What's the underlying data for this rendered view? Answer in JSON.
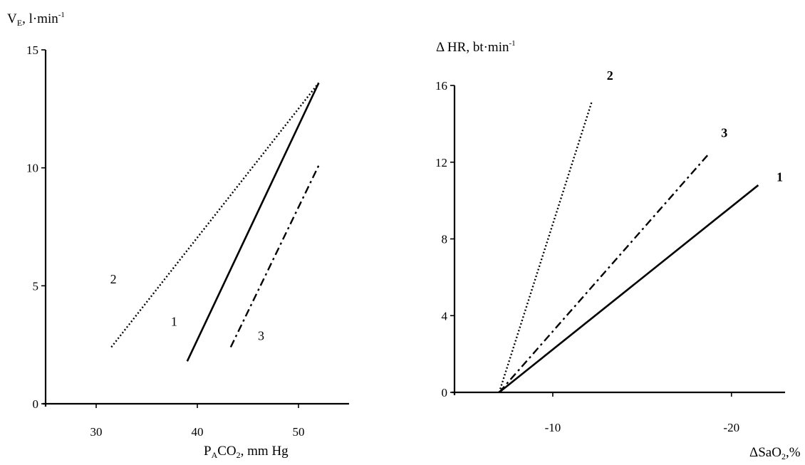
{
  "chart_data": [
    {
      "type": "line",
      "ylabel": {
        "main": "V",
        "sub": "E",
        "rest": ", l·min",
        "sup": "-1"
      },
      "xlabel": {
        "main": "P",
        "sub": "A",
        "mid": "CO",
        "sub2": "2",
        "rest": ", mm Hg"
      },
      "xlim": [
        25,
        55
      ],
      "ylim": [
        0,
        15
      ],
      "xticks": [
        30,
        40,
        50
      ],
      "yticks": [
        0,
        5,
        10,
        15
      ],
      "grid": false,
      "series": [
        {
          "name": "1",
          "style": "solid",
          "points": [
            [
              39,
              1.8
            ],
            [
              52,
              13.6
            ]
          ],
          "label_at": [
            37.7,
            3.3
          ]
        },
        {
          "name": "2",
          "style": "dotted",
          "points": [
            [
              31.5,
              2.4
            ],
            [
              52,
              13.6
            ]
          ],
          "label_at": [
            31.7,
            5.1
          ]
        },
        {
          "name": "3",
          "style": "dashdot",
          "points": [
            [
              43.3,
              2.4
            ],
            [
              52,
              10.1
            ]
          ],
          "label_at": [
            46.3,
            2.7
          ]
        }
      ]
    },
    {
      "type": "line",
      "ylabel": {
        "main": "Δ HR, bt·min",
        "sup": "-1"
      },
      "xlabel": {
        "main": "ΔSaO",
        "sub": "2",
        "rest": ",%"
      },
      "xlim": [
        -4.5,
        -23
      ],
      "ylim": [
        0,
        16
      ],
      "xticks": [
        -10,
        -20
      ],
      "yticks": [
        0,
        4,
        8,
        12,
        16
      ],
      "grid": false,
      "series": [
        {
          "name": "1",
          "style": "solid",
          "points": [
            [
              -7,
              0
            ],
            [
              -21.5,
              10.8
            ]
          ],
          "label_at": [
            -22.7,
            11
          ]
        },
        {
          "name": "2",
          "style": "dotted",
          "points": [
            [
              -7,
              0
            ],
            [
              -12.2,
              15.2
            ]
          ],
          "label_at": [
            -13.2,
            16.3
          ]
        },
        {
          "name": "3",
          "style": "dashdot",
          "points": [
            [
              -7,
              0
            ],
            [
              -18.7,
              12.4
            ]
          ],
          "label_at": [
            -19.6,
            13.3
          ]
        }
      ]
    }
  ]
}
